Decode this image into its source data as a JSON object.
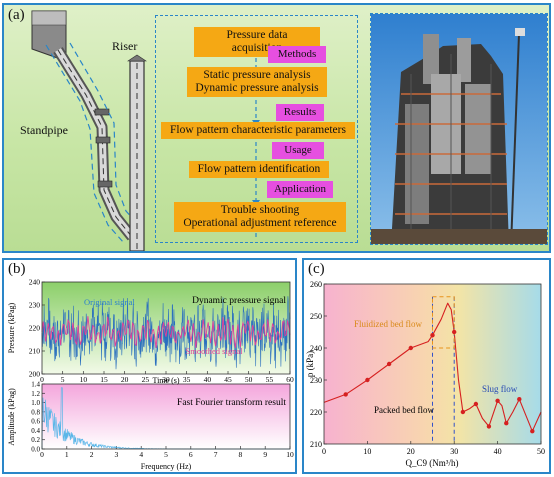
{
  "panel_a": {
    "label": "(a)",
    "riser_label": "Riser",
    "standpipe_label": "Standpipe",
    "flow": [
      {
        "kind": "step",
        "text": "Pressure data acquisition"
      },
      {
        "kind": "tag",
        "text": "Methods"
      },
      {
        "kind": "step",
        "text": "Static pressure analysis\nDynamic pressure analysis"
      },
      {
        "kind": "tag",
        "text": "Results"
      },
      {
        "kind": "step",
        "text": "Flow pattern characteristic parameters"
      },
      {
        "kind": "tag",
        "text": "Usage"
      },
      {
        "kind": "step",
        "text": "Flow pattern identification"
      },
      {
        "kind": "tag",
        "text": "Application"
      },
      {
        "kind": "step",
        "text": "Trouble shooting\nOperational adjustment reference"
      }
    ],
    "colors": {
      "step": "#f5a814",
      "tag": "#e64fe0",
      "dash": "#2a86c8"
    }
  },
  "panel_b": {
    "label": "(b)",
    "top_title": "Dynamic pressure signal",
    "original_label": "Original signal",
    "smoothed_label": "Smoothed signal",
    "top_xlabel": "Time (s)",
    "top_ylabel": "Pressure (kPag)",
    "bottom_title": "Fast Fourier transform result",
    "bottom_xlabel": "Frequency (Hz)",
    "bottom_ylabel": "Amplitude (kPag)"
  },
  "panel_c": {
    "label": "(c)",
    "xlabel": "Q_C9 (Nm³/h)",
    "ylabel": "p (kPa)",
    "packed": "Packed bed flow",
    "fluidized": "Fluidized bed flow",
    "slug": "Slug flow"
  },
  "chart_data": [
    {
      "type": "line",
      "title": "Dynamic pressure signal",
      "xlabel": "Time (s)",
      "ylabel": "Pressure (kPag)",
      "xlim": [
        0,
        60
      ],
      "ylim": [
        200,
        240
      ],
      "xticks": [
        0,
        5,
        10,
        15,
        20,
        25,
        30,
        35,
        40,
        45,
        50,
        55,
        60
      ],
      "yticks": [
        200,
        210,
        220,
        230,
        240
      ],
      "series": [
        {
          "name": "Original signal"
        },
        {
          "name": "Smoothed signal"
        }
      ],
      "mean_pressure": 218
    },
    {
      "type": "area",
      "title": "Fast Fourier transform result",
      "xlabel": "Frequency (Hz)",
      "ylabel": "Amplitude (kPag)",
      "xlim": [
        0,
        10
      ],
      "ylim": [
        0,
        1.4
      ],
      "xticks": [
        0,
        1,
        2,
        3,
        4,
        5,
        6,
        7,
        8,
        9,
        10
      ],
      "yticks": [
        0.0,
        0.2,
        0.4,
        0.6,
        0.8,
        1.0,
        1.2,
        1.4
      ],
      "peak": {
        "x": 0.8,
        "y": 1.32
      }
    },
    {
      "type": "line",
      "xlabel": "Q_C9 (Nm³/h)",
      "ylabel": "p (kPa)",
      "xlim": [
        0,
        50
      ],
      "ylim": [
        210,
        260
      ],
      "xticks": [
        0,
        10,
        20,
        30,
        40,
        50
      ],
      "yticks": [
        210,
        220,
        230,
        240,
        250,
        260
      ],
      "x": [
        5,
        10,
        15,
        20,
        25,
        30,
        32,
        35,
        38,
        40,
        42,
        45,
        48
      ],
      "y": [
        225.5,
        230,
        235,
        240,
        244,
        245,
        220,
        222.5,
        215.5,
        223.5,
        216.5,
        224,
        214
      ],
      "vlines": [
        25,
        30
      ],
      "regions": [
        "Packed bed flow",
        "Fluidized bed flow",
        "Slug flow"
      ]
    }
  ]
}
